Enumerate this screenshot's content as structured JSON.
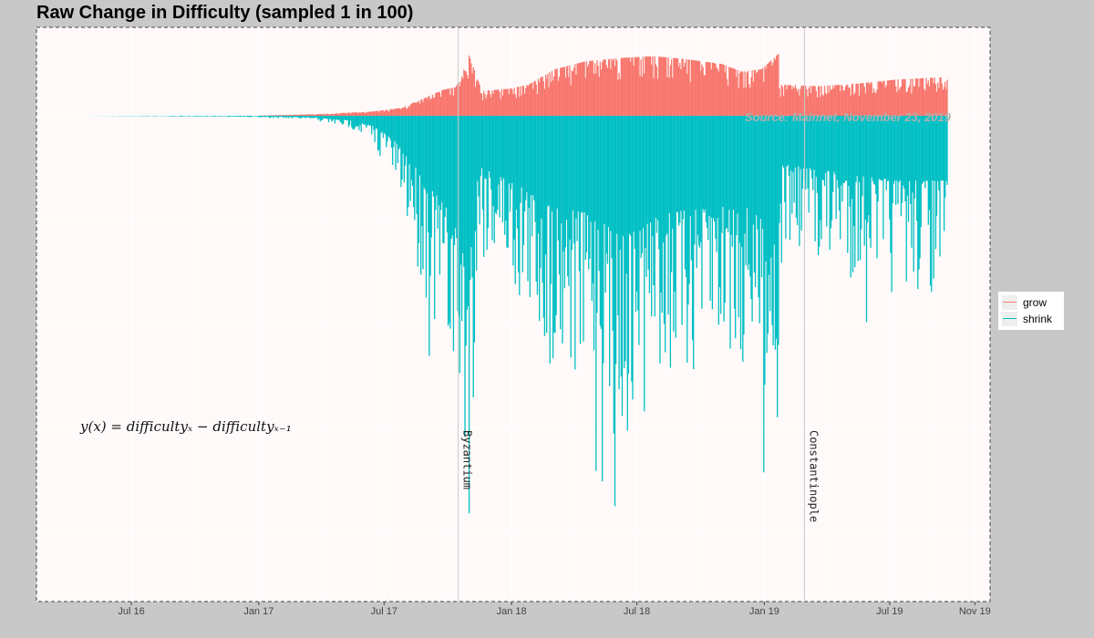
{
  "chart_data": {
    "type": "bar",
    "title": "Raw Change in Difficulty (sampled 1 in 100)",
    "xlabel": "",
    "ylabel": "",
    "x_ticks": [
      "Jul 16",
      "Jan 17",
      "Jul 17",
      "Jan 18",
      "Jul 18",
      "Jan 19",
      "Jul 19",
      "Nov 19"
    ],
    "x_tick_dates": [
      "2016-07-01",
      "2017-01-01",
      "2017-07-01",
      "2018-01-01",
      "2018-07-01",
      "2019-01-01",
      "2019-07-01",
      "2019-11-01"
    ],
    "x_range": [
      "2016-02-15",
      "2019-11-23"
    ],
    "y_relative_range": [
      -1.0,
      0.125
    ],
    "grid": true,
    "legend_position": "right",
    "series": [
      {
        "name": "grow",
        "color": "#f8766d",
        "envelope_dates": [
          "2016-03-01",
          "2016-12-01",
          "2017-03-01",
          "2017-06-01",
          "2017-07-15",
          "2017-08-15",
          "2017-09-20",
          "2017-10-10",
          "2017-10-20",
          "2017-10-30",
          "2017-11-20",
          "2018-01-01",
          "2018-02-01",
          "2018-03-15",
          "2018-05-01",
          "2018-07-01",
          "2018-08-15",
          "2018-10-01",
          "2018-12-01",
          "2019-01-01",
          "2019-02-01",
          "2019-02-28",
          "2019-03-01",
          "2019-05-01",
          "2019-07-01",
          "2019-09-01",
          "2019-11-20"
        ],
        "envelope_values": [
          0.0,
          0.0,
          0.003,
          0.008,
          0.015,
          0.03,
          0.05,
          0.055,
          0.077,
          0.12,
          0.048,
          0.052,
          0.06,
          0.09,
          0.105,
          0.112,
          0.115,
          0.11,
          0.1,
          0.085,
          0.09,
          0.12,
          0.06,
          0.057,
          0.062,
          0.07,
          0.075
        ]
      },
      {
        "name": "shrink",
        "color": "#00bfc4",
        "envelope_dates": [
          "2016-03-01",
          "2016-12-01",
          "2017-03-01",
          "2017-05-01",
          "2017-06-01",
          "2017-07-01",
          "2017-08-01",
          "2017-09-01",
          "2017-10-01",
          "2017-10-20",
          "2017-10-30",
          "2017-11-15",
          "2018-01-15",
          "2018-03-01",
          "2018-05-01",
          "2018-07-01",
          "2018-09-01",
          "2018-11-01",
          "2019-01-01",
          "2019-02-15",
          "2019-02-28",
          "2019-03-05",
          "2019-05-01",
          "2019-07-01",
          "2019-09-01",
          "2019-11-20"
        ],
        "envelope_values": [
          0.0,
          -0.003,
          -0.01,
          -0.03,
          -0.06,
          -0.13,
          -0.28,
          -0.45,
          -0.6,
          -0.8,
          -0.96,
          -0.3,
          -0.42,
          -0.55,
          -0.6,
          -0.75,
          -0.6,
          -0.58,
          -0.55,
          -0.68,
          -0.75,
          -0.3,
          -0.33,
          -0.37,
          -0.4,
          -0.4
        ]
      }
    ],
    "annotations": {
      "events": [
        {
          "label": "Byzantium",
          "date": "2017-10-16"
        },
        {
          "label": "Constantinople",
          "date": "2019-02-28"
        }
      ],
      "source": "Source: Mainnet, November 23, 2019",
      "formula": "y(x) = difficultyₓ − difficultyₓ₋₁"
    }
  },
  "legend": {
    "items": [
      {
        "label": "grow",
        "color": "#f8766d"
      },
      {
        "label": "shrink",
        "color": "#00bfc4"
      }
    ]
  },
  "colors": {
    "panel_background": "#fffaf9",
    "page_background": "#c8c8c8",
    "gridline": "#ffffff",
    "event_line": "#c8c8c8"
  }
}
